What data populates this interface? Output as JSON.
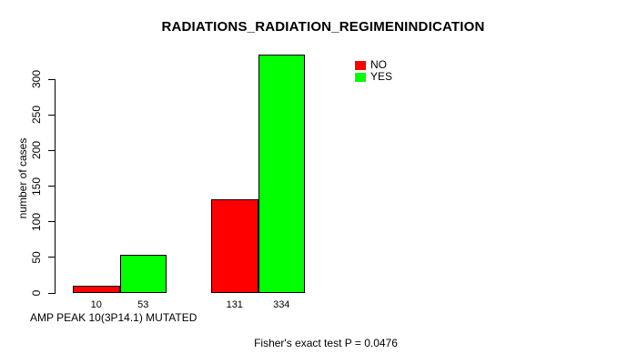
{
  "chart_data": {
    "type": "bar",
    "title": "RADIATIONS_RADIATION_REGIMENINDICATION",
    "xlabel": "AMP PEAK 10(3P14.1) MUTATED",
    "ylabel": "number of cases",
    "annotation": "Fisher's exact test P = 0.0476",
    "series": [
      {
        "name": "NO",
        "color": "#FF0000",
        "values": [
          10,
          131
        ]
      },
      {
        "name": "YES",
        "color": "#00FF00",
        "values": [
          53,
          334
        ]
      }
    ],
    "groups": 2,
    "bar_labels": [
      "10",
      "53",
      "131",
      "334"
    ],
    "yticks": [
      0,
      50,
      100,
      150,
      200,
      250,
      300
    ],
    "ylim": [
      0,
      340
    ],
    "grid": false,
    "legend_position": "top-right-inside",
    "background": "#FFFFFF",
    "bar_border_color": "#000000"
  }
}
